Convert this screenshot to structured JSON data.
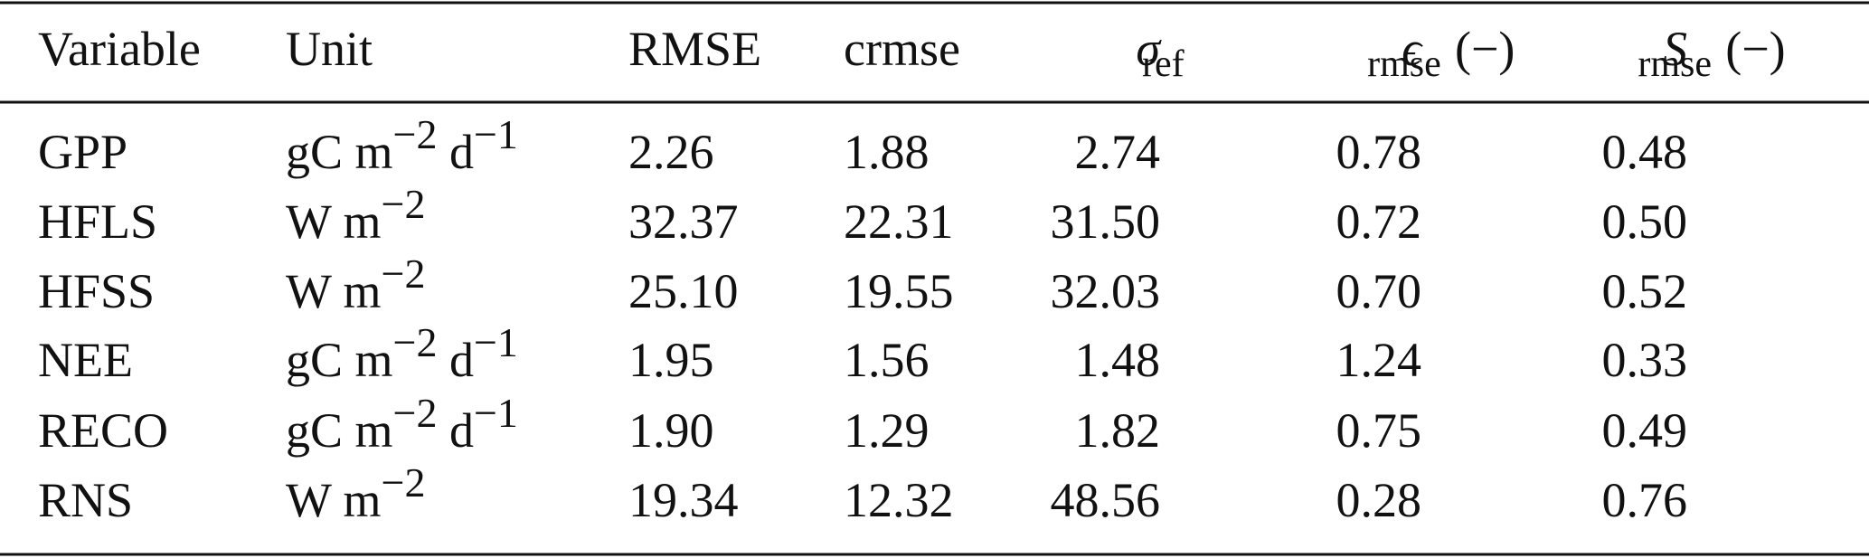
{
  "table": {
    "header": [
      {
        "text": "Variable"
      },
      {
        "text": "Unit"
      },
      {
        "text": "RMSE"
      },
      {
        "text": "crmse"
      },
      {
        "symbol": "σ",
        "sub": "ref"
      },
      {
        "symbol": "ϵ",
        "sub": "rmse",
        "suffix": " (−)"
      },
      {
        "symbol": "S",
        "sub": "rmse",
        "suffix": " (−)"
      }
    ],
    "rows": [
      {
        "variable": "GPP",
        "unit": [
          {
            "text": "gC m"
          },
          {
            "sup": "−2"
          },
          {
            "text": " d"
          },
          {
            "sup": "−1"
          }
        ],
        "values": [
          "2.26",
          "1.88",
          "2.74",
          "0.78",
          "0.48"
        ]
      },
      {
        "variable": "HFLS",
        "unit": [
          {
            "text": "W m"
          },
          {
            "sup": "−2"
          }
        ],
        "values": [
          "32.37",
          "22.31",
          "31.50",
          "0.72",
          "0.50"
        ]
      },
      {
        "variable": "HFSS",
        "unit": [
          {
            "text": "W m"
          },
          {
            "sup": "−2"
          }
        ],
        "values": [
          "25.10",
          "19.55",
          "32.03",
          "0.70",
          "0.52"
        ]
      },
      {
        "variable": "NEE",
        "unit": [
          {
            "text": "gC m"
          },
          {
            "sup": "−2"
          },
          {
            "text": " d"
          },
          {
            "sup": "−1"
          }
        ],
        "values": [
          "1.95",
          "1.56",
          "1.48",
          "1.24",
          "0.33"
        ]
      },
      {
        "variable": "RECO",
        "unit": [
          {
            "text": "gC m"
          },
          {
            "sup": "−2"
          },
          {
            "text": " d"
          },
          {
            "sup": "−1"
          }
        ],
        "values": [
          "1.90",
          "1.29",
          "1.82",
          "0.75",
          "0.49"
        ]
      },
      {
        "variable": "RNS",
        "unit": [
          {
            "text": "W m"
          },
          {
            "sup": "−2"
          }
        ],
        "values": [
          "19.34",
          "12.32",
          "48.56",
          "0.28",
          "0.76"
        ]
      }
    ]
  }
}
